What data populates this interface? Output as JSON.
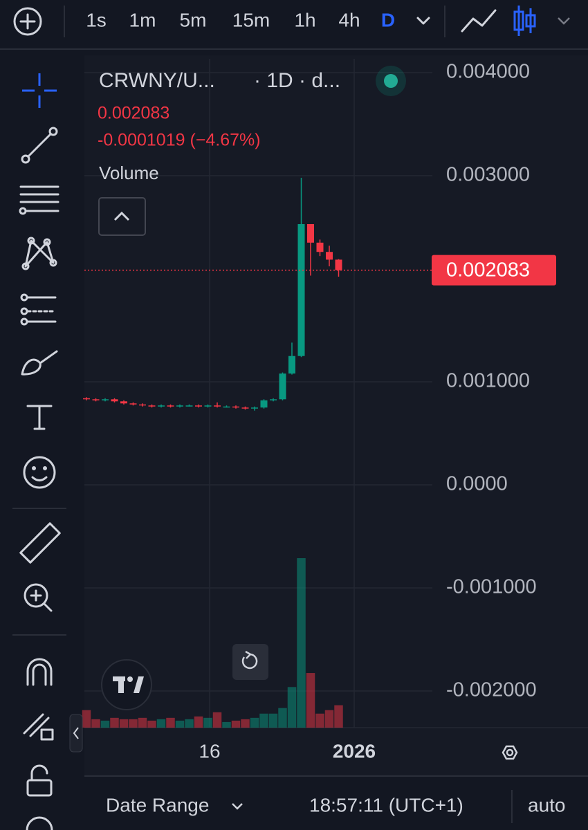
{
  "toolbar": {
    "intervals": [
      "1s",
      "1m",
      "5m",
      "15m",
      "1h",
      "4h",
      "D"
    ]
  },
  "legend": {
    "symbol": "CRWNY/U...",
    "interval": "· 1D · d...",
    "price": "0.002083",
    "change": "-0.0001019 (−4.67%)",
    "volume": "Volume"
  },
  "chart_data": {
    "type": "candlestick",
    "open": [
      0.00084,
      0.00083,
      0.00082,
      0.00083,
      0.00081,
      0.00079,
      0.00078,
      0.00077,
      0.00076,
      0.00077,
      0.00076,
      0.00077,
      0.00077,
      0.00076,
      0.00077,
      0.00076,
      0.00076,
      0.00075,
      0.00074,
      0.00075,
      0.00082,
      0.00083,
      0.00108,
      0.00125,
      0.00253,
      0.00235,
      0.00226,
      0.002185
    ],
    "high": [
      0.00085,
      0.00084,
      0.00084,
      0.00084,
      0.00082,
      0.0008,
      0.00079,
      0.00078,
      0.00078,
      0.00078,
      0.00078,
      0.00078,
      0.00078,
      0.00078,
      0.0008,
      0.00077,
      0.00077,
      0.00076,
      0.00076,
      0.00083,
      0.00084,
      0.00109,
      0.00138,
      0.00298,
      0.00253,
      0.00238,
      0.00232,
      0.00219
    ],
    "low": [
      0.00082,
      0.00081,
      0.00081,
      0.0008,
      0.00078,
      0.00077,
      0.00076,
      0.00075,
      0.00075,
      0.00075,
      0.00075,
      0.00076,
      0.00075,
      0.00075,
      0.00075,
      0.00075,
      0.00074,
      0.00073,
      0.00072,
      0.00074,
      0.00081,
      0.00082,
      0.00107,
      0.00124,
      0.00203,
      0.00222,
      0.00212,
      0.00202
    ],
    "close": [
      0.00083,
      0.00082,
      0.00083,
      0.00081,
      0.00079,
      0.00078,
      0.00077,
      0.00076,
      0.00077,
      0.00076,
      0.00077,
      0.00077,
      0.00076,
      0.00077,
      0.00076,
      0.00076,
      0.00075,
      0.00074,
      0.00075,
      0.00082,
      0.00083,
      0.00108,
      0.00125,
      0.00253,
      0.00235,
      0.00226,
      0.002185,
      0.002083
    ],
    "volume": [
      25,
      12,
      10,
      14,
      12,
      12,
      14,
      10,
      12,
      14,
      10,
      12,
      16,
      14,
      22,
      8,
      10,
      12,
      14,
      20,
      20,
      28,
      58,
      242,
      78,
      20,
      25,
      32
    ],
    "up_color": "#089981",
    "down_color": "#f23645",
    "ylim": [
      -0.002356,
      0.004134
    ],
    "yticks": [
      {
        "value": 0.004,
        "label": "0.004000"
      },
      {
        "value": 0.003,
        "label": "0.003000"
      },
      {
        "value": 0.001,
        "label": "0.001000"
      },
      {
        "value": 0,
        "label": "0.0000"
      },
      {
        "value": -0.001,
        "label": "-0.001000"
      },
      {
        "value": -0.002,
        "label": "-0.002000"
      }
    ],
    "last_price": 0.002083,
    "xtick_labels": [
      "16",
      "2026"
    ],
    "grid": true
  },
  "footer": {
    "date_range": "Date Range",
    "time": "18:57:11 (UTC+1)",
    "scale": "auto"
  }
}
